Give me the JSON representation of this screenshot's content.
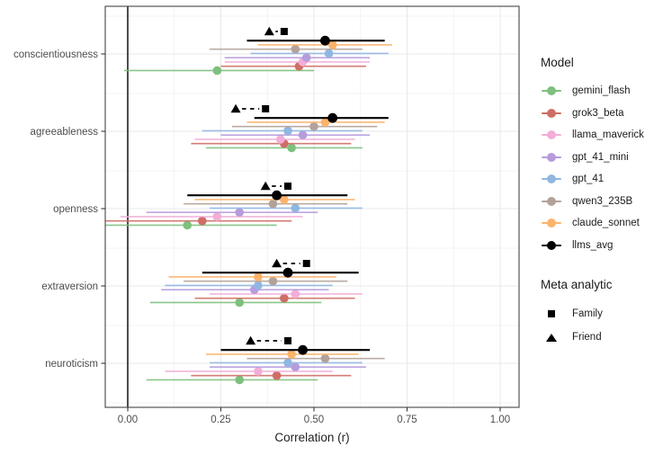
{
  "chart_data": {
    "type": "scatter",
    "subtype": "forest-pointrange",
    "title": "",
    "xlabel": "Correlation (r)",
    "ylabel": "",
    "xlim": [
      -0.06,
      1.05
    ],
    "x_ticks": [
      0,
      0.25,
      0.5,
      0.75,
      1.0
    ],
    "x_tick_labels": [
      "0.00",
      "0.25",
      "0.50",
      "0.75",
      "1.00"
    ],
    "x_minor_ticks": [
      0.125,
      0.375,
      0.625,
      0.875
    ],
    "grid": true,
    "legend_position": "right",
    "reference_line_x": 0.0,
    "categories": [
      "conscientiousness",
      "agreeableness",
      "openness",
      "extraversion",
      "neuroticism"
    ],
    "series": [
      {
        "name": "gemini_flash",
        "color": "#7EC07D",
        "est": [
          0.24,
          0.44,
          0.16,
          0.3,
          0.3
        ],
        "lo": [
          -0.01,
          0.21,
          -0.06,
          0.06,
          0.05
        ],
        "hi": [
          0.5,
          0.63,
          0.4,
          0.52,
          0.51
        ]
      },
      {
        "name": "grok3_beta",
        "color": "#CF6E66",
        "est": [
          0.46,
          0.42,
          0.2,
          0.42,
          0.4
        ],
        "lo": [
          0.25,
          0.17,
          -0.06,
          0.18,
          0.17
        ],
        "hi": [
          0.64,
          0.6,
          0.44,
          0.61,
          0.6
        ]
      },
      {
        "name": "llama_maverick",
        "color": "#F2AED8",
        "est": [
          0.47,
          0.41,
          0.24,
          0.45,
          0.35
        ],
        "lo": [
          0.26,
          0.18,
          -0.02,
          0.22,
          0.1
        ],
        "hi": [
          0.65,
          0.61,
          0.47,
          0.63,
          0.55
        ]
      },
      {
        "name": "gpt_41_mini",
        "color": "#B79CDC",
        "est": [
          0.48,
          0.47,
          0.3,
          0.34,
          0.45
        ],
        "lo": [
          0.26,
          0.25,
          0.05,
          0.09,
          0.22
        ],
        "hi": [
          0.65,
          0.65,
          0.51,
          0.54,
          0.64
        ]
      },
      {
        "name": "gpt_41",
        "color": "#90B7E2",
        "est": [
          0.54,
          0.43,
          0.45,
          0.35,
          0.43
        ],
        "lo": [
          0.33,
          0.2,
          0.22,
          0.1,
          0.22
        ],
        "hi": [
          0.7,
          0.63,
          0.63,
          0.55,
          0.63
        ]
      },
      {
        "name": "qwen3_235B",
        "color": "#B3A29A",
        "est": [
          0.45,
          0.5,
          0.39,
          0.39,
          0.53
        ],
        "lo": [
          0.22,
          0.28,
          0.15,
          0.15,
          0.32
        ],
        "hi": [
          0.63,
          0.67,
          0.59,
          0.59,
          0.69
        ]
      },
      {
        "name": "claude_sonnet",
        "color": "#FCB36A",
        "est": [
          0.55,
          0.53,
          0.42,
          0.35,
          0.44
        ],
        "lo": [
          0.35,
          0.32,
          0.18,
          0.11,
          0.21
        ],
        "hi": [
          0.71,
          0.69,
          0.61,
          0.56,
          0.62
        ]
      },
      {
        "name": "llms_avg",
        "color": "#000000",
        "est": [
          0.53,
          0.55,
          0.4,
          0.43,
          0.47
        ],
        "lo": [
          0.32,
          0.34,
          0.16,
          0.2,
          0.25
        ],
        "hi": [
          0.69,
          0.7,
          0.59,
          0.62,
          0.65
        ]
      }
    ],
    "meta_analytic": {
      "family": {
        "label": "Family",
        "marker": "square",
        "values": [
          0.42,
          0.37,
          0.43,
          0.48,
          0.43
        ]
      },
      "friend": {
        "label": "Friend",
        "marker": "triangle",
        "values": [
          0.38,
          0.29,
          0.37,
          0.4,
          0.33
        ]
      }
    },
    "colors": {
      "reference_line": "#000000",
      "panel_border": "#555555",
      "grid_major": "#e8e8e8",
      "grid_minor": "#f3f3f3",
      "tick_text": "#4d4d4d",
      "meta_marker": "#000000"
    }
  },
  "legend": {
    "model_title": "Model",
    "meta_title": "Meta analytic",
    "items": [
      {
        "label": "gemini_flash",
        "color": "#7EC07D"
      },
      {
        "label": "grok3_beta",
        "color": "#CF6E66"
      },
      {
        "label": "llama_maverick",
        "color": "#F2AED8"
      },
      {
        "label": "gpt_41_mini",
        "color": "#B79CDC"
      },
      {
        "label": "gpt_41",
        "color": "#90B7E2"
      },
      {
        "label": "qwen3_235B",
        "color": "#B3A29A"
      },
      {
        "label": "claude_sonnet",
        "color": "#FCB36A"
      },
      {
        "label": "llms_avg",
        "color": "#000000"
      }
    ],
    "meta_items": [
      {
        "label": "Family",
        "marker": "square"
      },
      {
        "label": "Friend",
        "marker": "triangle"
      }
    ]
  }
}
